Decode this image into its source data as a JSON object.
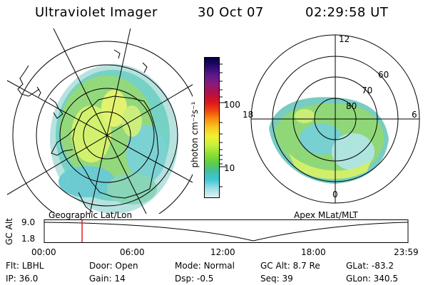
{
  "header": {
    "title": "Ultraviolet Imager",
    "date": "30 Oct 07",
    "time": "02:29:58 UT"
  },
  "left_panel": {
    "label": "Geographic Lat/Lon"
  },
  "right_panel": {
    "label": "Apex MLat/MLT",
    "mlt_labels": [
      "12",
      "18",
      "6",
      "0"
    ],
    "lat_labels": [
      "60",
      "70",
      "80"
    ]
  },
  "colorbar": {
    "unit_label": "photon cm⁻²s⁻¹",
    "tick_labels": [
      "100",
      "10"
    ],
    "colors": [
      "#000044",
      "#2a0a6e",
      "#5c1a8a",
      "#8a1a7a",
      "#b0104a",
      "#d81420",
      "#f04010",
      "#f88c10",
      "#f8c820",
      "#f0f030",
      "#c8f040",
      "#90e030",
      "#60d040",
      "#40c0a0",
      "#40c8d8",
      "#a0e0e8",
      "#e0f0f0"
    ]
  },
  "timeline": {
    "axis_title": "GC Alt",
    "y_labels": [
      "9.0",
      "1.8"
    ],
    "x_labels": [
      "00:00",
      "06:00",
      "12:00",
      "18:00",
      "23:59"
    ],
    "current_time_fraction": 0.104,
    "marker_color": "#e02020"
  },
  "info": {
    "flt_label": "Flt:",
    "flt_value": "LBHL",
    "ip_label": "IP:",
    "ip_value": "36.0",
    "door_label": "Door:",
    "door_value": "Open",
    "gain_label": "Gain:",
    "gain_value": "14",
    "mode_label": "Mode:",
    "mode_value": "Normal",
    "dsp_label": "Dsp:",
    "dsp_value": "-0.5",
    "gcalt_label": "GC Alt:",
    "gcalt_value": "8.7 Re",
    "seq_label": "Seq:",
    "seq_value": "39",
    "glat_label": "GLat:",
    "glat_value": "-83.2",
    "glon_label": "GLon:",
    "glon_value": "340.5"
  }
}
